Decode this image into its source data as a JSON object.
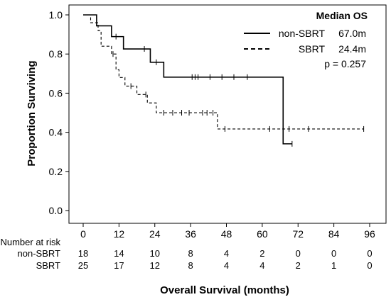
{
  "chart_data": {
    "type": "line",
    "subtype": "kaplan-meier",
    "xlabel": "Overall Survival (months)",
    "ylabel": "Proportion Surviving",
    "xlim": [
      0,
      96
    ],
    "ylim": [
      0,
      1
    ],
    "xticks": [
      "0",
      "12",
      "24",
      "36",
      "48",
      "60",
      "72",
      "84",
      "96"
    ],
    "yticks": [
      "0.0",
      "0.2",
      "0.4",
      "0.6",
      "0.8",
      "1.0"
    ],
    "grid": false,
    "legend": {
      "title": "Median OS",
      "placement": "top-right",
      "entries": [
        {
          "label": "non-SBRT",
          "median": "67.0m",
          "style": "solid"
        },
        {
          "label": "SBRT",
          "median": "24.4m",
          "style": "dashed"
        }
      ],
      "pvalue": "p = 0.257"
    },
    "series": [
      {
        "name": "non-SBRT",
        "style": "solid",
        "steps": [
          {
            "x": 0,
            "y": 1.0
          },
          {
            "x": 4.5,
            "y": 0.944
          },
          {
            "x": 9.5,
            "y": 0.889
          },
          {
            "x": 13.5,
            "y": 0.826
          },
          {
            "x": 22.5,
            "y": 0.758
          },
          {
            "x": 27,
            "y": 0.682
          },
          {
            "x": 67,
            "y": 0.341
          }
        ],
        "end": 70,
        "censored": [
          {
            "x": 11,
            "y": 0.889
          },
          {
            "x": 20.5,
            "y": 0.826
          },
          {
            "x": 24.5,
            "y": 0.758
          },
          {
            "x": 36.5,
            "y": 0.682
          },
          {
            "x": 37.5,
            "y": 0.682
          },
          {
            "x": 38.5,
            "y": 0.682
          },
          {
            "x": 42.5,
            "y": 0.682
          },
          {
            "x": 46.5,
            "y": 0.682
          },
          {
            "x": 50.5,
            "y": 0.682
          },
          {
            "x": 55,
            "y": 0.682
          },
          {
            "x": 70,
            "y": 0.341
          }
        ]
      },
      {
        "name": "SBRT",
        "style": "dashed",
        "steps": [
          {
            "x": 0,
            "y": 1.0
          },
          {
            "x": 2.5,
            "y": 0.96
          },
          {
            "x": 5,
            "y": 0.92
          },
          {
            "x": 6,
            "y": 0.84
          },
          {
            "x": 9.5,
            "y": 0.8
          },
          {
            "x": 11,
            "y": 0.72
          },
          {
            "x": 12,
            "y": 0.68
          },
          {
            "x": 14,
            "y": 0.636
          },
          {
            "x": 18,
            "y": 0.593
          },
          {
            "x": 21.5,
            "y": 0.55
          },
          {
            "x": 24.5,
            "y": 0.5
          },
          {
            "x": 45,
            "y": 0.417
          }
        ],
        "end": 94,
        "censored": [
          {
            "x": 10,
            "y": 0.8
          },
          {
            "x": 16,
            "y": 0.636
          },
          {
            "x": 21,
            "y": 0.593
          },
          {
            "x": 27,
            "y": 0.5
          },
          {
            "x": 30,
            "y": 0.5
          },
          {
            "x": 33,
            "y": 0.5
          },
          {
            "x": 35.5,
            "y": 0.5
          },
          {
            "x": 40,
            "y": 0.5
          },
          {
            "x": 41.5,
            "y": 0.5
          },
          {
            "x": 43.5,
            "y": 0.5
          },
          {
            "x": 47.5,
            "y": 0.417
          },
          {
            "x": 62.5,
            "y": 0.417
          },
          {
            "x": 69,
            "y": 0.417
          },
          {
            "x": 75.5,
            "y": 0.417
          },
          {
            "x": 94,
            "y": 0.417
          }
        ]
      }
    ],
    "risk_table": {
      "title": "Number at risk",
      "times": [
        0,
        12,
        24,
        36,
        48,
        60,
        72,
        84,
        96
      ],
      "rows": [
        {
          "label": "non-SBRT",
          "counts": [
            "18",
            "14",
            "10",
            "8",
            "4",
            "2",
            "0",
            "0",
            "0"
          ]
        },
        {
          "label": "SBRT",
          "counts": [
            "25",
            "17",
            "12",
            "8",
            "4",
            "4",
            "2",
            "1",
            "0"
          ]
        }
      ]
    }
  }
}
